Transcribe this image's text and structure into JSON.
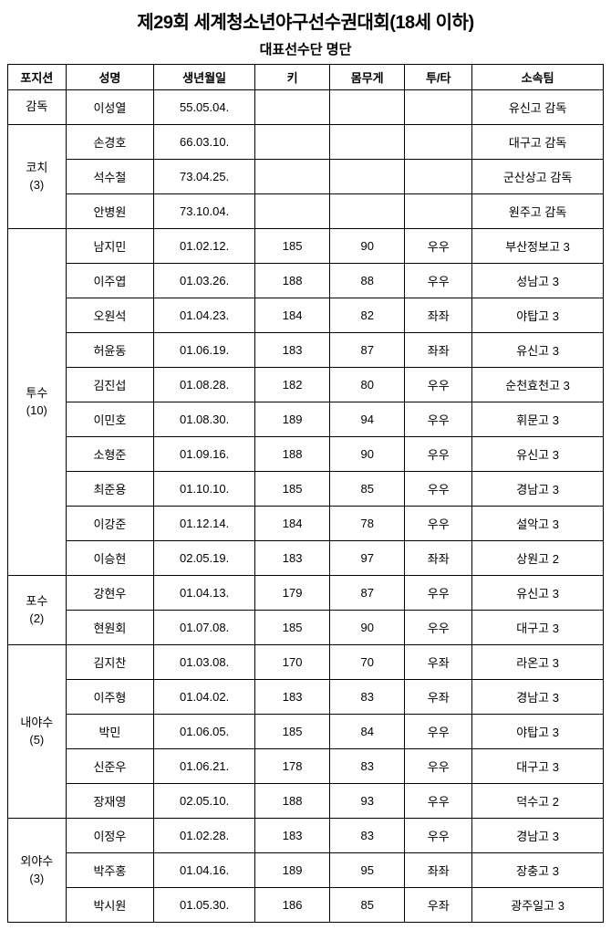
{
  "title": "제29회 세계청소년야구선수권대회(18세 이하)",
  "subtitle": "대표선수단 명단",
  "headers": {
    "position": "포지션",
    "name": "성명",
    "birth": "생년월일",
    "height": "키",
    "weight": "몸무게",
    "bat_throw": "투/타",
    "team": "소속팀"
  },
  "groups": [
    {
      "label": "감독",
      "count": "",
      "rows": [
        {
          "name": "이성열",
          "birth": "55.05.04.",
          "height": "",
          "weight": "",
          "bat": "",
          "team": "유신고 감독"
        }
      ]
    },
    {
      "label": "코치",
      "count": "(3)",
      "rows": [
        {
          "name": "손경호",
          "birth": "66.03.10.",
          "height": "",
          "weight": "",
          "bat": "",
          "team": "대구고 감독"
        },
        {
          "name": "석수철",
          "birth": "73.04.25.",
          "height": "",
          "weight": "",
          "bat": "",
          "team": "군산상고 감독"
        },
        {
          "name": "안병원",
          "birth": "73.10.04.",
          "height": "",
          "weight": "",
          "bat": "",
          "team": "원주고 감독"
        }
      ]
    },
    {
      "label": "투수",
      "count": "(10)",
      "rows": [
        {
          "name": "남지민",
          "birth": "01.02.12.",
          "height": "185",
          "weight": "90",
          "bat": "우우",
          "team": "부산정보고 3"
        },
        {
          "name": "이주엽",
          "birth": "01.03.26.",
          "height": "188",
          "weight": "88",
          "bat": "우우",
          "team": "성남고 3"
        },
        {
          "name": "오원석",
          "birth": "01.04.23.",
          "height": "184",
          "weight": "82",
          "bat": "좌좌",
          "team": "야탑고 3"
        },
        {
          "name": "허윤동",
          "birth": "01.06.19.",
          "height": "183",
          "weight": "87",
          "bat": "좌좌",
          "team": "유신고 3"
        },
        {
          "name": "김진섭",
          "birth": "01.08.28.",
          "height": "182",
          "weight": "80",
          "bat": "우우",
          "team": "순천효천고 3"
        },
        {
          "name": "이민호",
          "birth": "01.08.30.",
          "height": "189",
          "weight": "94",
          "bat": "우우",
          "team": "휘문고 3"
        },
        {
          "name": "소형준",
          "birth": "01.09.16.",
          "height": "188",
          "weight": "90",
          "bat": "우우",
          "team": "유신고 3"
        },
        {
          "name": "최준용",
          "birth": "01.10.10.",
          "height": "185",
          "weight": "85",
          "bat": "우우",
          "team": "경남고 3"
        },
        {
          "name": "이강준",
          "birth": "01.12.14.",
          "height": "184",
          "weight": "78",
          "bat": "우우",
          "team": "설악고 3"
        },
        {
          "name": "이승현",
          "birth": "02.05.19.",
          "height": "183",
          "weight": "97",
          "bat": "좌좌",
          "team": "상원고 2"
        }
      ]
    },
    {
      "label": "포수",
      "count": "(2)",
      "rows": [
        {
          "name": "강현우",
          "birth": "01.04.13.",
          "height": "179",
          "weight": "87",
          "bat": "우우",
          "team": "유신고 3"
        },
        {
          "name": "현원회",
          "birth": "01.07.08.",
          "height": "185",
          "weight": "90",
          "bat": "우우",
          "team": "대구고 3"
        }
      ]
    },
    {
      "label": "내야수",
      "count": "(5)",
      "rows": [
        {
          "name": "김지찬",
          "birth": "01.03.08.",
          "height": "170",
          "weight": "70",
          "bat": "우좌",
          "team": "라온고 3"
        },
        {
          "name": "이주형",
          "birth": "01.04.02.",
          "height": "183",
          "weight": "83",
          "bat": "우좌",
          "team": "경남고 3"
        },
        {
          "name": "박민",
          "birth": "01.06.05.",
          "height": "185",
          "weight": "84",
          "bat": "우우",
          "team": "야탑고 3"
        },
        {
          "name": "신준우",
          "birth": "01.06.21.",
          "height": "178",
          "weight": "83",
          "bat": "우우",
          "team": "대구고 3"
        },
        {
          "name": "장재영",
          "birth": "02.05.10.",
          "height": "188",
          "weight": "93",
          "bat": "우우",
          "team": "덕수고 2"
        }
      ]
    },
    {
      "label": "외야수",
      "count": "(3)",
      "rows": [
        {
          "name": "이정우",
          "birth": "01.02.28.",
          "height": "183",
          "weight": "83",
          "bat": "우우",
          "team": "경남고 3"
        },
        {
          "name": "박주홍",
          "birth": "01.04.16.",
          "height": "189",
          "weight": "95",
          "bat": "좌좌",
          "team": "장충고 3"
        },
        {
          "name": "박시원",
          "birth": "01.05.30.",
          "height": "186",
          "weight": "85",
          "bat": "우좌",
          "team": "광주일고 3"
        }
      ]
    }
  ]
}
